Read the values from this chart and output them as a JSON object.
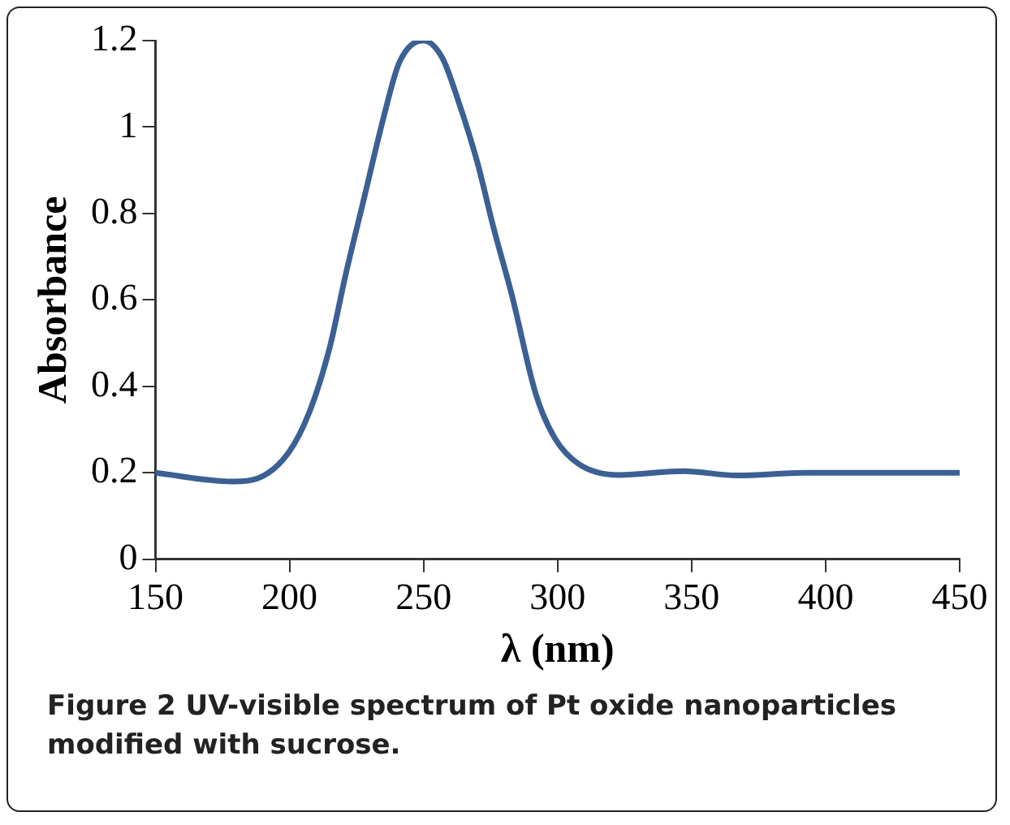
{
  "chart_data": {
    "type": "line",
    "xlabel": "λ (nm)",
    "ylabel": "Absorbance",
    "annotations": [
      "Figure 2 UV-visible spectrum of Pt oxide nanoparticles modified with sucrose."
    ],
    "x": [
      150,
      179,
      188,
      200,
      208,
      215,
      221,
      228,
      235,
      241,
      250,
      257,
      263,
      270,
      276,
      283,
      292,
      299,
      308,
      323,
      347,
      367,
      392,
      450
    ],
    "series": [
      {
        "color": "#3b6094",
        "values": [
          0.2,
          0.18,
          0.187,
          0.25,
          0.35,
          0.49,
          0.66,
          0.84,
          1.02,
          1.15,
          1.2,
          1.16,
          1.06,
          0.92,
          0.77,
          0.61,
          0.38,
          0.28,
          0.22,
          0.195,
          0.204,
          0.194,
          0.2,
          0.2
        ]
      }
    ],
    "xlim": [
      150,
      450
    ],
    "xticks": [
      150,
      200,
      250,
      300,
      350,
      400,
      450
    ],
    "ylim": [
      0,
      1.2
    ],
    "yticks": [
      0,
      0.2,
      0.4,
      0.6,
      0.8,
      1,
      1.2
    ],
    "grid": false,
    "legend": false,
    "marker": "none",
    "line_style": "solid"
  }
}
